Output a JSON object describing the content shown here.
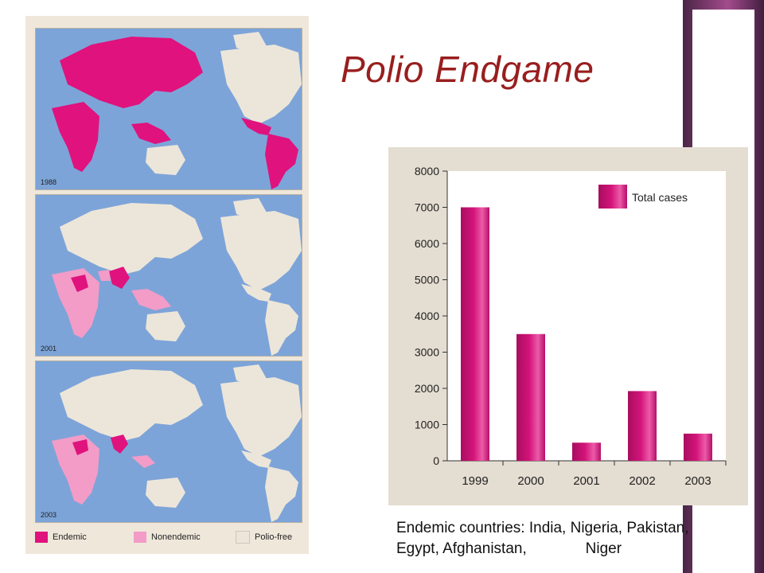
{
  "title": "Polio Endgame",
  "colors": {
    "endemic": "#e0127d",
    "nonendemic": "#f29cc7",
    "polio_free": "#ece6da",
    "ocean": "#7da4d8",
    "bar": "#d4147a",
    "title": "#991e1e"
  },
  "maps": [
    {
      "year": "1988"
    },
    {
      "year": "2001"
    },
    {
      "year": "2003"
    }
  ],
  "map_legend": {
    "endemic": "Endemic",
    "nonendemic": "Nonendemic",
    "polio_free": "Polio-free"
  },
  "chart_data": {
    "type": "bar",
    "categories": [
      "1999",
      "2000",
      "2001",
      "2002",
      "2003"
    ],
    "series": [
      {
        "name": "Total cases",
        "values": [
          7000,
          3500,
          500,
          1925,
          750
        ]
      }
    ],
    "ylim": [
      0,
      8000
    ],
    "yticks": [
      "0",
      "1000",
      "2000",
      "3000",
      "4000",
      "5000",
      "6000",
      "7000",
      "8000"
    ],
    "legend_position": "top-right",
    "grid": false
  },
  "note": {
    "line1": "Endemic countries: India, Nigeria, Pakistan,",
    "line2": "Egypt, Afghanistan,              Niger"
  }
}
